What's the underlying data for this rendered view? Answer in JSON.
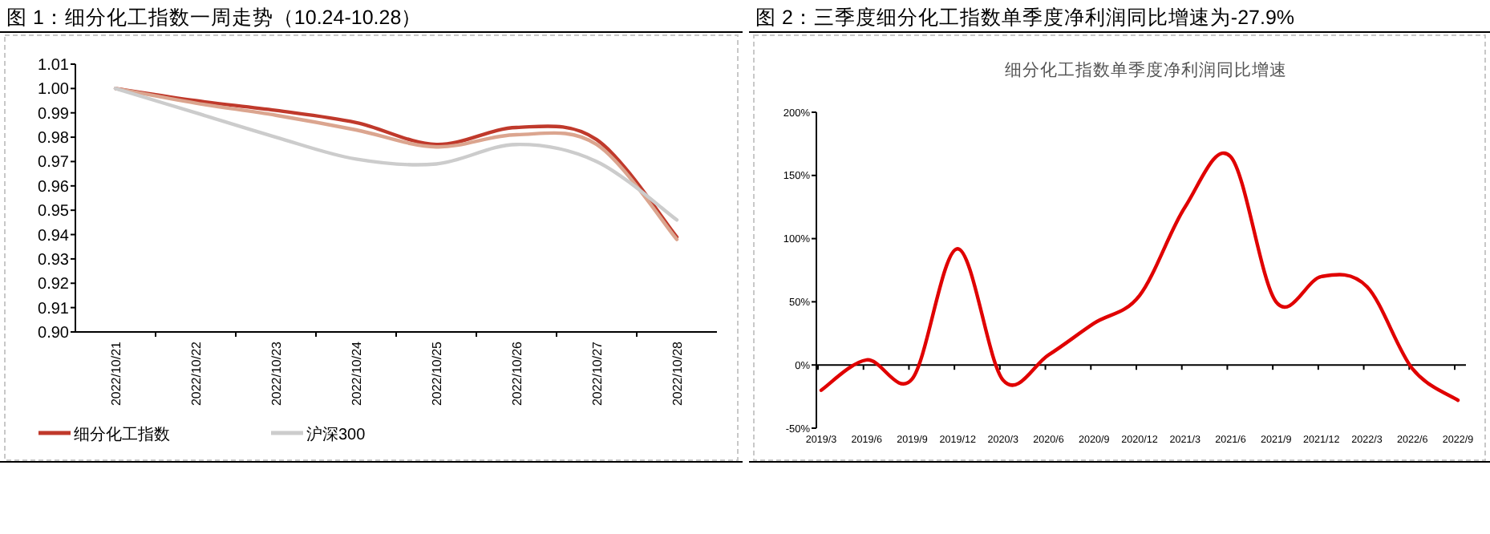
{
  "chart_data": [
    {
      "type": "line",
      "title": "图 1：细分化工指数一周走势（10.24-10.28）",
      "categories": [
        "2022/10/21",
        "2022/10/22",
        "2022/10/23",
        "2022/10/24",
        "2022/10/25",
        "2022/10/26",
        "2022/10/27",
        "2022/10/28"
      ],
      "series": [
        {
          "name": "细分化工指数",
          "color": "#c0392b",
          "values": [
            1.0,
            0.995,
            0.991,
            0.986,
            0.977,
            0.984,
            0.979,
            0.939
          ]
        },
        {
          "color": "#dba58f",
          "values": [
            1.0,
            0.994,
            0.989,
            0.983,
            0.976,
            0.981,
            0.977,
            0.938
          ]
        },
        {
          "name": "沪深300",
          "color": "#cccccc",
          "values": [
            1.0,
            0.99,
            0.98,
            0.971,
            0.969,
            0.977,
            0.97,
            0.946
          ]
        }
      ],
      "ylim": [
        0.9,
        1.01
      ],
      "yticks": [
        {
          "value": 0.9,
          "label": "0.90"
        },
        {
          "value": 0.91,
          "label": "0.91"
        },
        {
          "value": 0.92,
          "label": "0.92"
        },
        {
          "value": 0.93,
          "label": "0.93"
        },
        {
          "value": 0.94,
          "label": "0.94"
        },
        {
          "value": 0.95,
          "label": "0.95"
        },
        {
          "value": 0.96,
          "label": "0.96"
        },
        {
          "value": 0.97,
          "label": "0.97"
        },
        {
          "value": 0.98,
          "label": "0.98"
        },
        {
          "value": 0.99,
          "label": "0.99"
        },
        {
          "value": 1.0,
          "label": "1.00"
        },
        {
          "value": 1.01,
          "label": "1.01"
        }
      ],
      "grid": false,
      "legend": "bottom",
      "marker": "none",
      "line_style": "solid"
    },
    {
      "type": "line",
      "title": "图 2：三季度细分化工指数单季度净利润同比增速为-27.9%",
      "subtitle": "细分化工指数单季度净利润同比增速",
      "categories": [
        "2019/3",
        "2019/6",
        "2019/9",
        "2019/12",
        "2020/3",
        "2020/6",
        "2020/9",
        "2020/12",
        "2021/3",
        "2021/6",
        "2021/9",
        "2021/12",
        "2022/3",
        "2022/6",
        "2022/9"
      ],
      "series": [
        {
          "color": "#e00000",
          "values": [
            -20,
            4,
            -11,
            92,
            -12,
            8,
            33,
            55,
            125,
            165,
            50,
            70,
            62,
            -3,
            -27.9
          ]
        }
      ],
      "ylim": [
        -50,
        200
      ],
      "yticks": [
        {
          "value": -50,
          "label": "-50%"
        },
        {
          "value": 0,
          "label": "0%"
        },
        {
          "value": 50,
          "label": "50%"
        },
        {
          "value": 100,
          "label": "100%"
        },
        {
          "value": 150,
          "label": "150%"
        },
        {
          "value": 200,
          "label": "200%"
        }
      ],
      "ref_lines": [
        {
          "axis": "y",
          "value": 0,
          "color": "#000000"
        }
      ],
      "grid": false,
      "legend": false,
      "marker": "none",
      "line_style": "solid"
    }
  ]
}
